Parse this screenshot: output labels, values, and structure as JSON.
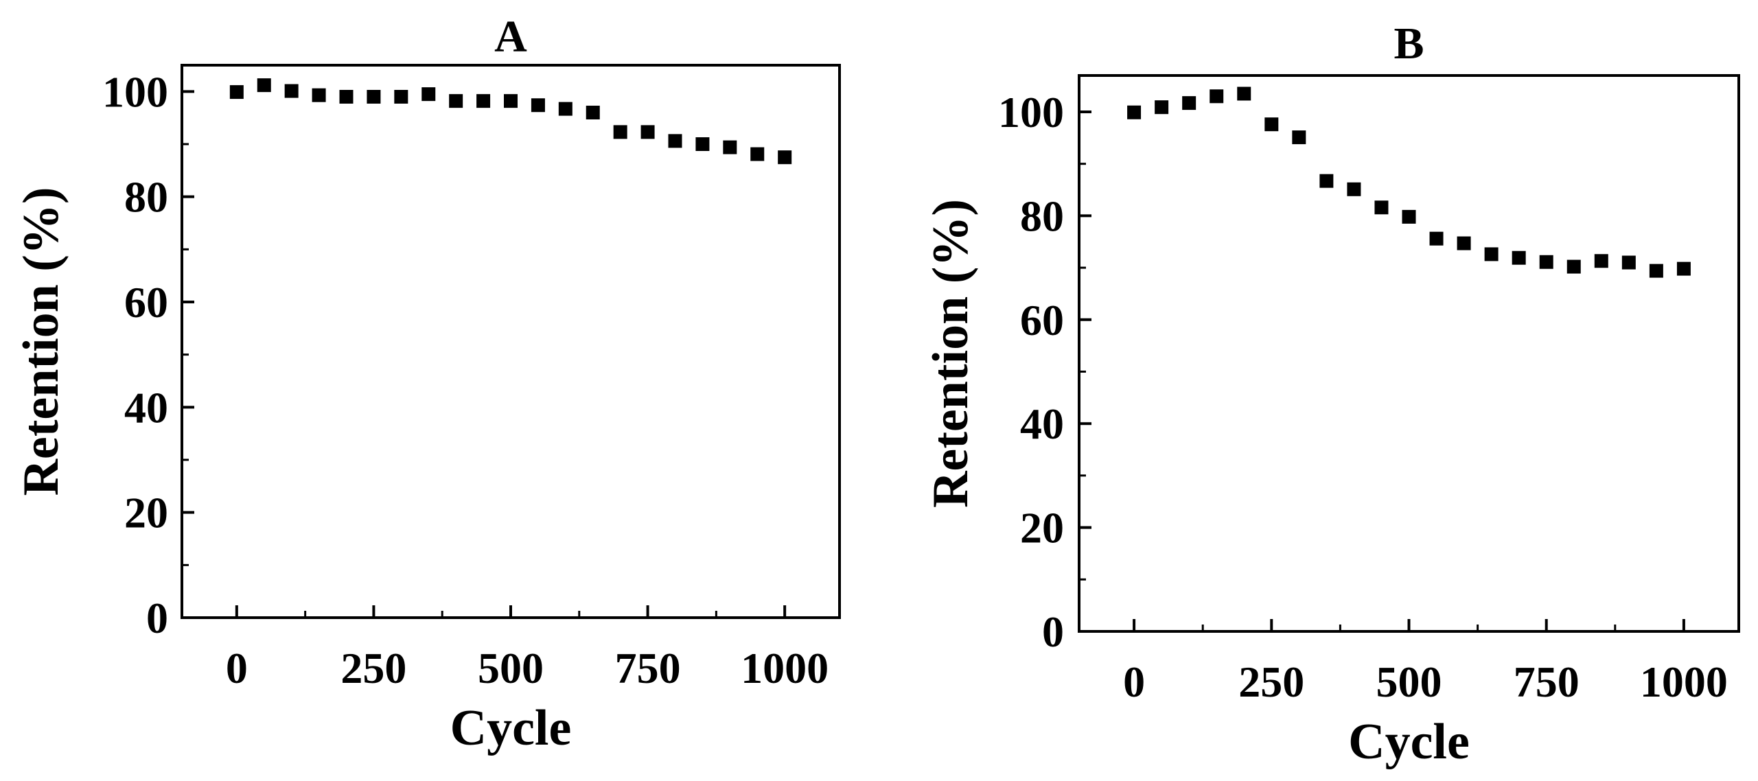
{
  "chart_data": [
    {
      "type": "scatter",
      "title": "A",
      "xlabel": "Cycle",
      "ylabel": "Retention (%)",
      "xlim": [
        -100,
        1100
      ],
      "ylim": [
        0,
        105
      ],
      "xticks": [
        0,
        250,
        500,
        750,
        1000
      ],
      "xtick_labels": [
        "0",
        "250",
        "500",
        "750",
        "1000"
      ],
      "yticks": [
        0,
        20,
        40,
        60,
        80,
        100
      ],
      "ytick_labels": [
        "0",
        "20",
        "40",
        "60",
        "80",
        "100"
      ],
      "grid": false,
      "marker": "square",
      "marker_color": "#000000",
      "series": [
        {
          "name": "A",
          "x": [
            0,
            50,
            100,
            150,
            200,
            250,
            300,
            350,
            400,
            450,
            500,
            550,
            600,
            650,
            700,
            750,
            800,
            850,
            900,
            950,
            1000
          ],
          "y": [
            99.9,
            101.2,
            100.1,
            99.3,
            99.0,
            99.0,
            99.0,
            99.5,
            98.2,
            98.2,
            98.2,
            97.4,
            96.7,
            96.0,
            92.3,
            92.3,
            90.6,
            90.0,
            89.4,
            88.1,
            87.5
          ]
        }
      ]
    },
    {
      "type": "scatter",
      "title": "B",
      "xlabel": "Cycle",
      "ylabel": "Retention (%)",
      "xlim": [
        -100,
        1100
      ],
      "ylim": [
        0,
        107
      ],
      "xticks": [
        0,
        250,
        500,
        750,
        1000
      ],
      "xtick_labels": [
        "0",
        "250",
        "500",
        "750",
        "1000"
      ],
      "yticks": [
        0,
        20,
        40,
        60,
        80,
        100
      ],
      "ytick_labels": [
        "0",
        "20",
        "40",
        "60",
        "80",
        "100"
      ],
      "grid": false,
      "marker": "square",
      "marker_color": "#000000",
      "series": [
        {
          "name": "B",
          "x": [
            0,
            50,
            100,
            150,
            200,
            250,
            300,
            350,
            400,
            450,
            500,
            550,
            600,
            650,
            700,
            750,
            800,
            850,
            900,
            950,
            1000
          ],
          "y": [
            99.9,
            100.9,
            101.7,
            103.0,
            103.5,
            97.6,
            95.1,
            86.7,
            85.1,
            81.6,
            79.8,
            75.6,
            74.7,
            72.6,
            71.9,
            71.1,
            70.2,
            71.3,
            71.0,
            69.4,
            69.8
          ]
        }
      ]
    }
  ]
}
